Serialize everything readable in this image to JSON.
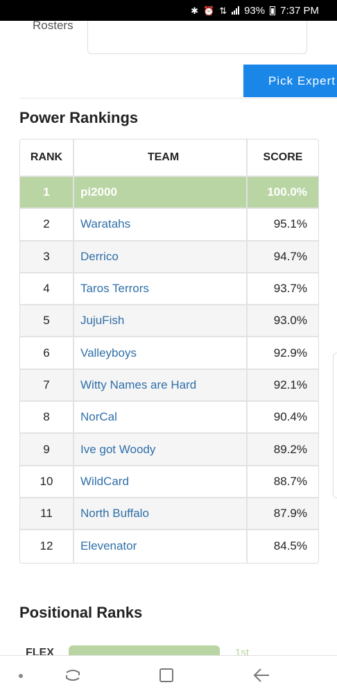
{
  "status_bar": {
    "battery": "93%",
    "time": "7:37 PM"
  },
  "header": {
    "rosters_label": "Rosters",
    "pick_expert_label": "Pick Expert"
  },
  "power_rankings": {
    "title": "Power Rankings",
    "columns": {
      "rank": "RANK",
      "team": "TEAM",
      "score": "SCORE"
    },
    "rows": [
      {
        "rank": "1",
        "team": "pi2000",
        "score": "100.0%"
      },
      {
        "rank": "2",
        "team": "Waratahs",
        "score": "95.1%"
      },
      {
        "rank": "3",
        "team": "Derrico",
        "score": "94.7%"
      },
      {
        "rank": "4",
        "team": "Taros Terrors",
        "score": "93.7%"
      },
      {
        "rank": "5",
        "team": "JujuFish",
        "score": "93.0%"
      },
      {
        "rank": "6",
        "team": "Valleyboys",
        "score": "92.9%"
      },
      {
        "rank": "7",
        "team": "Witty Names are Hard",
        "score": "92.1%"
      },
      {
        "rank": "8",
        "team": "NorCal",
        "score": "90.4%"
      },
      {
        "rank": "9",
        "team": "Ive got Woody",
        "score": "89.2%"
      },
      {
        "rank": "10",
        "team": "WildCard",
        "score": "88.7%"
      },
      {
        "rank": "11",
        "team": "North Buffalo",
        "score": "87.9%"
      },
      {
        "rank": "12",
        "team": "Elevenator",
        "score": "84.5%"
      }
    ]
  },
  "positional_ranks": {
    "title": "Positional Ranks",
    "first_label": "FLEX",
    "first_place": "1st"
  },
  "colors": {
    "leader_row": "#b9d5a3",
    "team_link": "#2f6fa8",
    "button": "#1a87e8"
  }
}
